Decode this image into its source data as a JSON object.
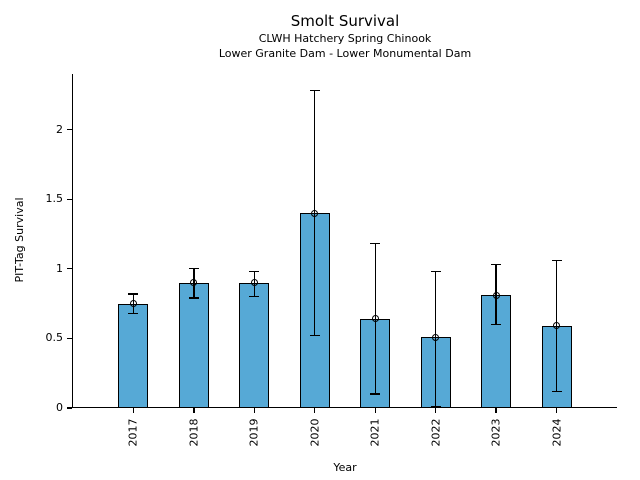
{
  "chart_data": {
    "type": "bar",
    "title": "Smolt Survival",
    "subtitle1": "CLWH Hatchery Spring Chinook",
    "subtitle2": "Lower Granite Dam - Lower Monumental Dam",
    "xlabel": "Year",
    "ylabel": "PIT-Tag Survival",
    "categories": [
      "2017",
      "2018",
      "2019",
      "2020",
      "2021",
      "2022",
      "2023",
      "2024"
    ],
    "values": [
      0.75,
      0.9,
      0.9,
      1.4,
      0.64,
      0.51,
      0.81,
      0.59
    ],
    "error_low": [
      0.68,
      0.79,
      0.8,
      0.52,
      0.1,
      0.01,
      0.6,
      0.12
    ],
    "error_high": [
      0.82,
      1.0,
      0.98,
      2.28,
      1.18,
      0.98,
      1.03,
      1.06
    ],
    "ylim": [
      0,
      2.4
    ],
    "yticks": [
      0,
      0.5,
      1,
      1.5,
      2
    ],
    "ytick_labels": [
      "0",
      "0.5",
      "1",
      "1.5",
      "2"
    ],
    "marker": "open-circle",
    "bar_color": "#56A9D6",
    "bar_edge_color": "#000000",
    "grid": false,
    "legend": false
  }
}
